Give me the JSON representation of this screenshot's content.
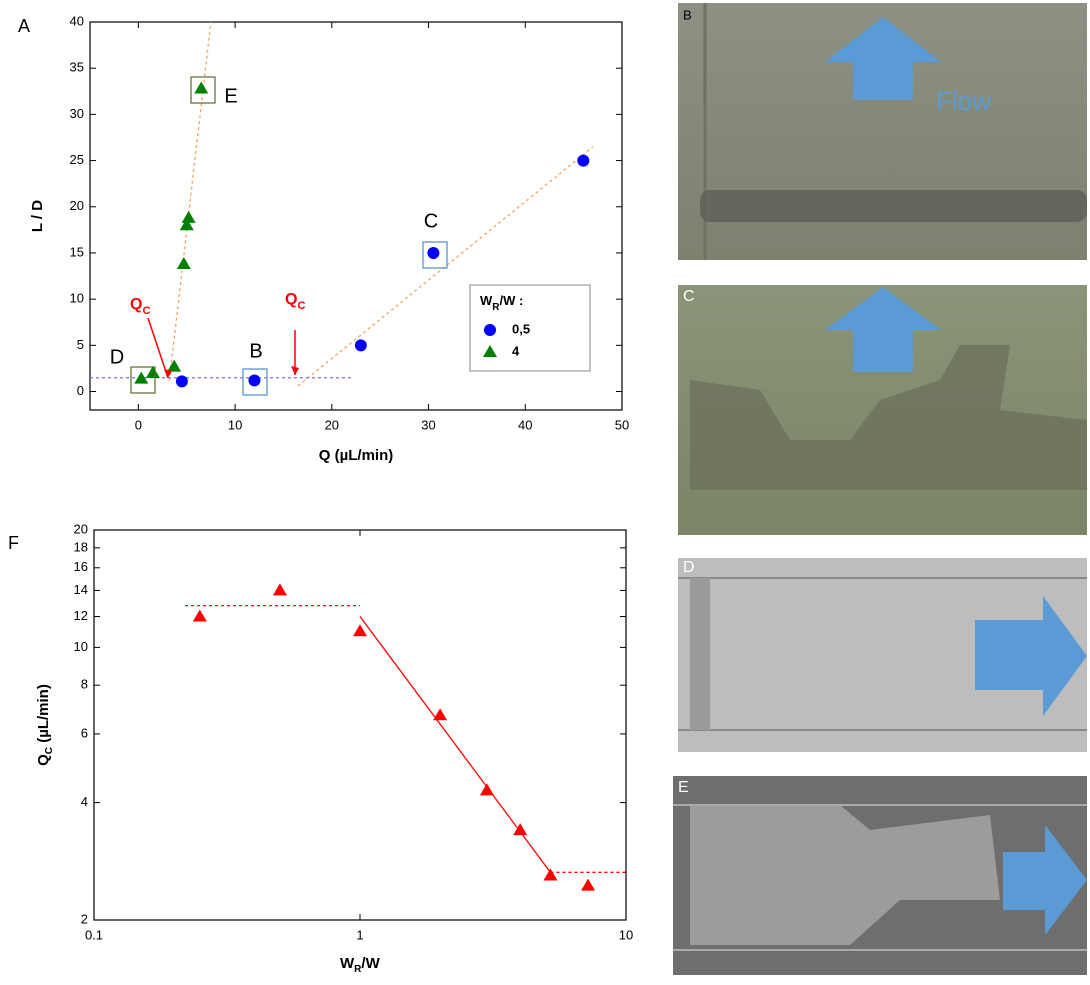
{
  "chart_data": [
    {
      "type": "scatter",
      "panel": "A",
      "x_label": "Q (µL/min)",
      "y_label": "L / D",
      "xlim": [
        -5,
        50
      ],
      "xticks": [
        0,
        10,
        20,
        30,
        40,
        50
      ],
      "ylim": [
        -2,
        40
      ],
      "yticks": [
        0,
        5,
        10,
        15,
        20,
        25,
        30,
        35,
        40
      ],
      "legend_title": {
        "main": "W",
        "sub": "R",
        "rest": "/W :"
      },
      "legend": "right",
      "series": [
        {
          "name": "0,5",
          "color": "#0000ff",
          "marker": "circle",
          "x": [
            4.5,
            12,
            23,
            30.5,
            46
          ],
          "y": [
            1.1,
            1.2,
            5,
            15,
            25
          ]
        },
        {
          "name": "4",
          "color": "#008000",
          "marker": "triangle",
          "x": [
            0.3,
            1.5,
            3.7,
            4.7,
            5,
            5.2,
            6.5
          ],
          "y": [
            1.4,
            2,
            2.7,
            13.8,
            18,
            18.8,
            32.8
          ]
        }
      ],
      "fit_lines": [
        {
          "color": "#f4a460",
          "dash": true,
          "x": [
            3.2,
            7.5
          ],
          "y": [
            1.2,
            40
          ]
        },
        {
          "color": "#f4a460",
          "dash": true,
          "x": [
            16.5,
            47
          ],
          "y": [
            0.6,
            26.5
          ]
        },
        {
          "color": "#8080ff",
          "dash": true,
          "x": [
            -5,
            22
          ],
          "y": [
            1.5,
            1.5
          ]
        }
      ],
      "annotations": [
        {
          "text": "Q",
          "subscript": "C"
        },
        {
          "text": "Q",
          "subscript": "C"
        },
        {
          "text": "B"
        },
        {
          "text": "C"
        },
        {
          "text": "D"
        },
        {
          "text": "E"
        }
      ]
    },
    {
      "type": "scatter",
      "panel": "F",
      "x_label": {
        "main": "W",
        "sub": "R",
        "rest": "/W"
      },
      "y_label": {
        "main": "Q",
        "sub": "C",
        "rest": " (µL/min)"
      },
      "xscale": "log",
      "yscale": "log",
      "xlim": [
        0.1,
        10
      ],
      "xticks": [
        0.1,
        1,
        10
      ],
      "ylim": [
        2,
        20
      ],
      "yticks": [
        2,
        4,
        6,
        8,
        10,
        12,
        14,
        16,
        18,
        20
      ],
      "series": [
        {
          "color": "#ff0000",
          "marker": "triangle",
          "x": [
            0.25,
            0.5,
            1,
            2,
            3,
            4,
            5.2,
            7.2
          ],
          "y": [
            12,
            14,
            11,
            6.7,
            4.3,
            3.4,
            2.6,
            2.45
          ]
        }
      ],
      "fit_lines": [
        {
          "color": "#ff0000",
          "dash": true,
          "x": [
            0.22,
            1
          ],
          "y": [
            12.8,
            12.8
          ]
        },
        {
          "color": "#ff0000",
          "dash": false,
          "x": [
            1,
            5.2
          ],
          "y": [
            12,
            2.65
          ]
        },
        {
          "color": "#ff0000",
          "dash": true,
          "x": [
            5.2,
            10
          ],
          "y": [
            2.65,
            2.65
          ]
        }
      ]
    }
  ],
  "images": [
    {
      "label": "B",
      "flow_label": "Flow"
    },
    {
      "label": "C"
    },
    {
      "label": "D"
    },
    {
      "label": "E"
    }
  ]
}
